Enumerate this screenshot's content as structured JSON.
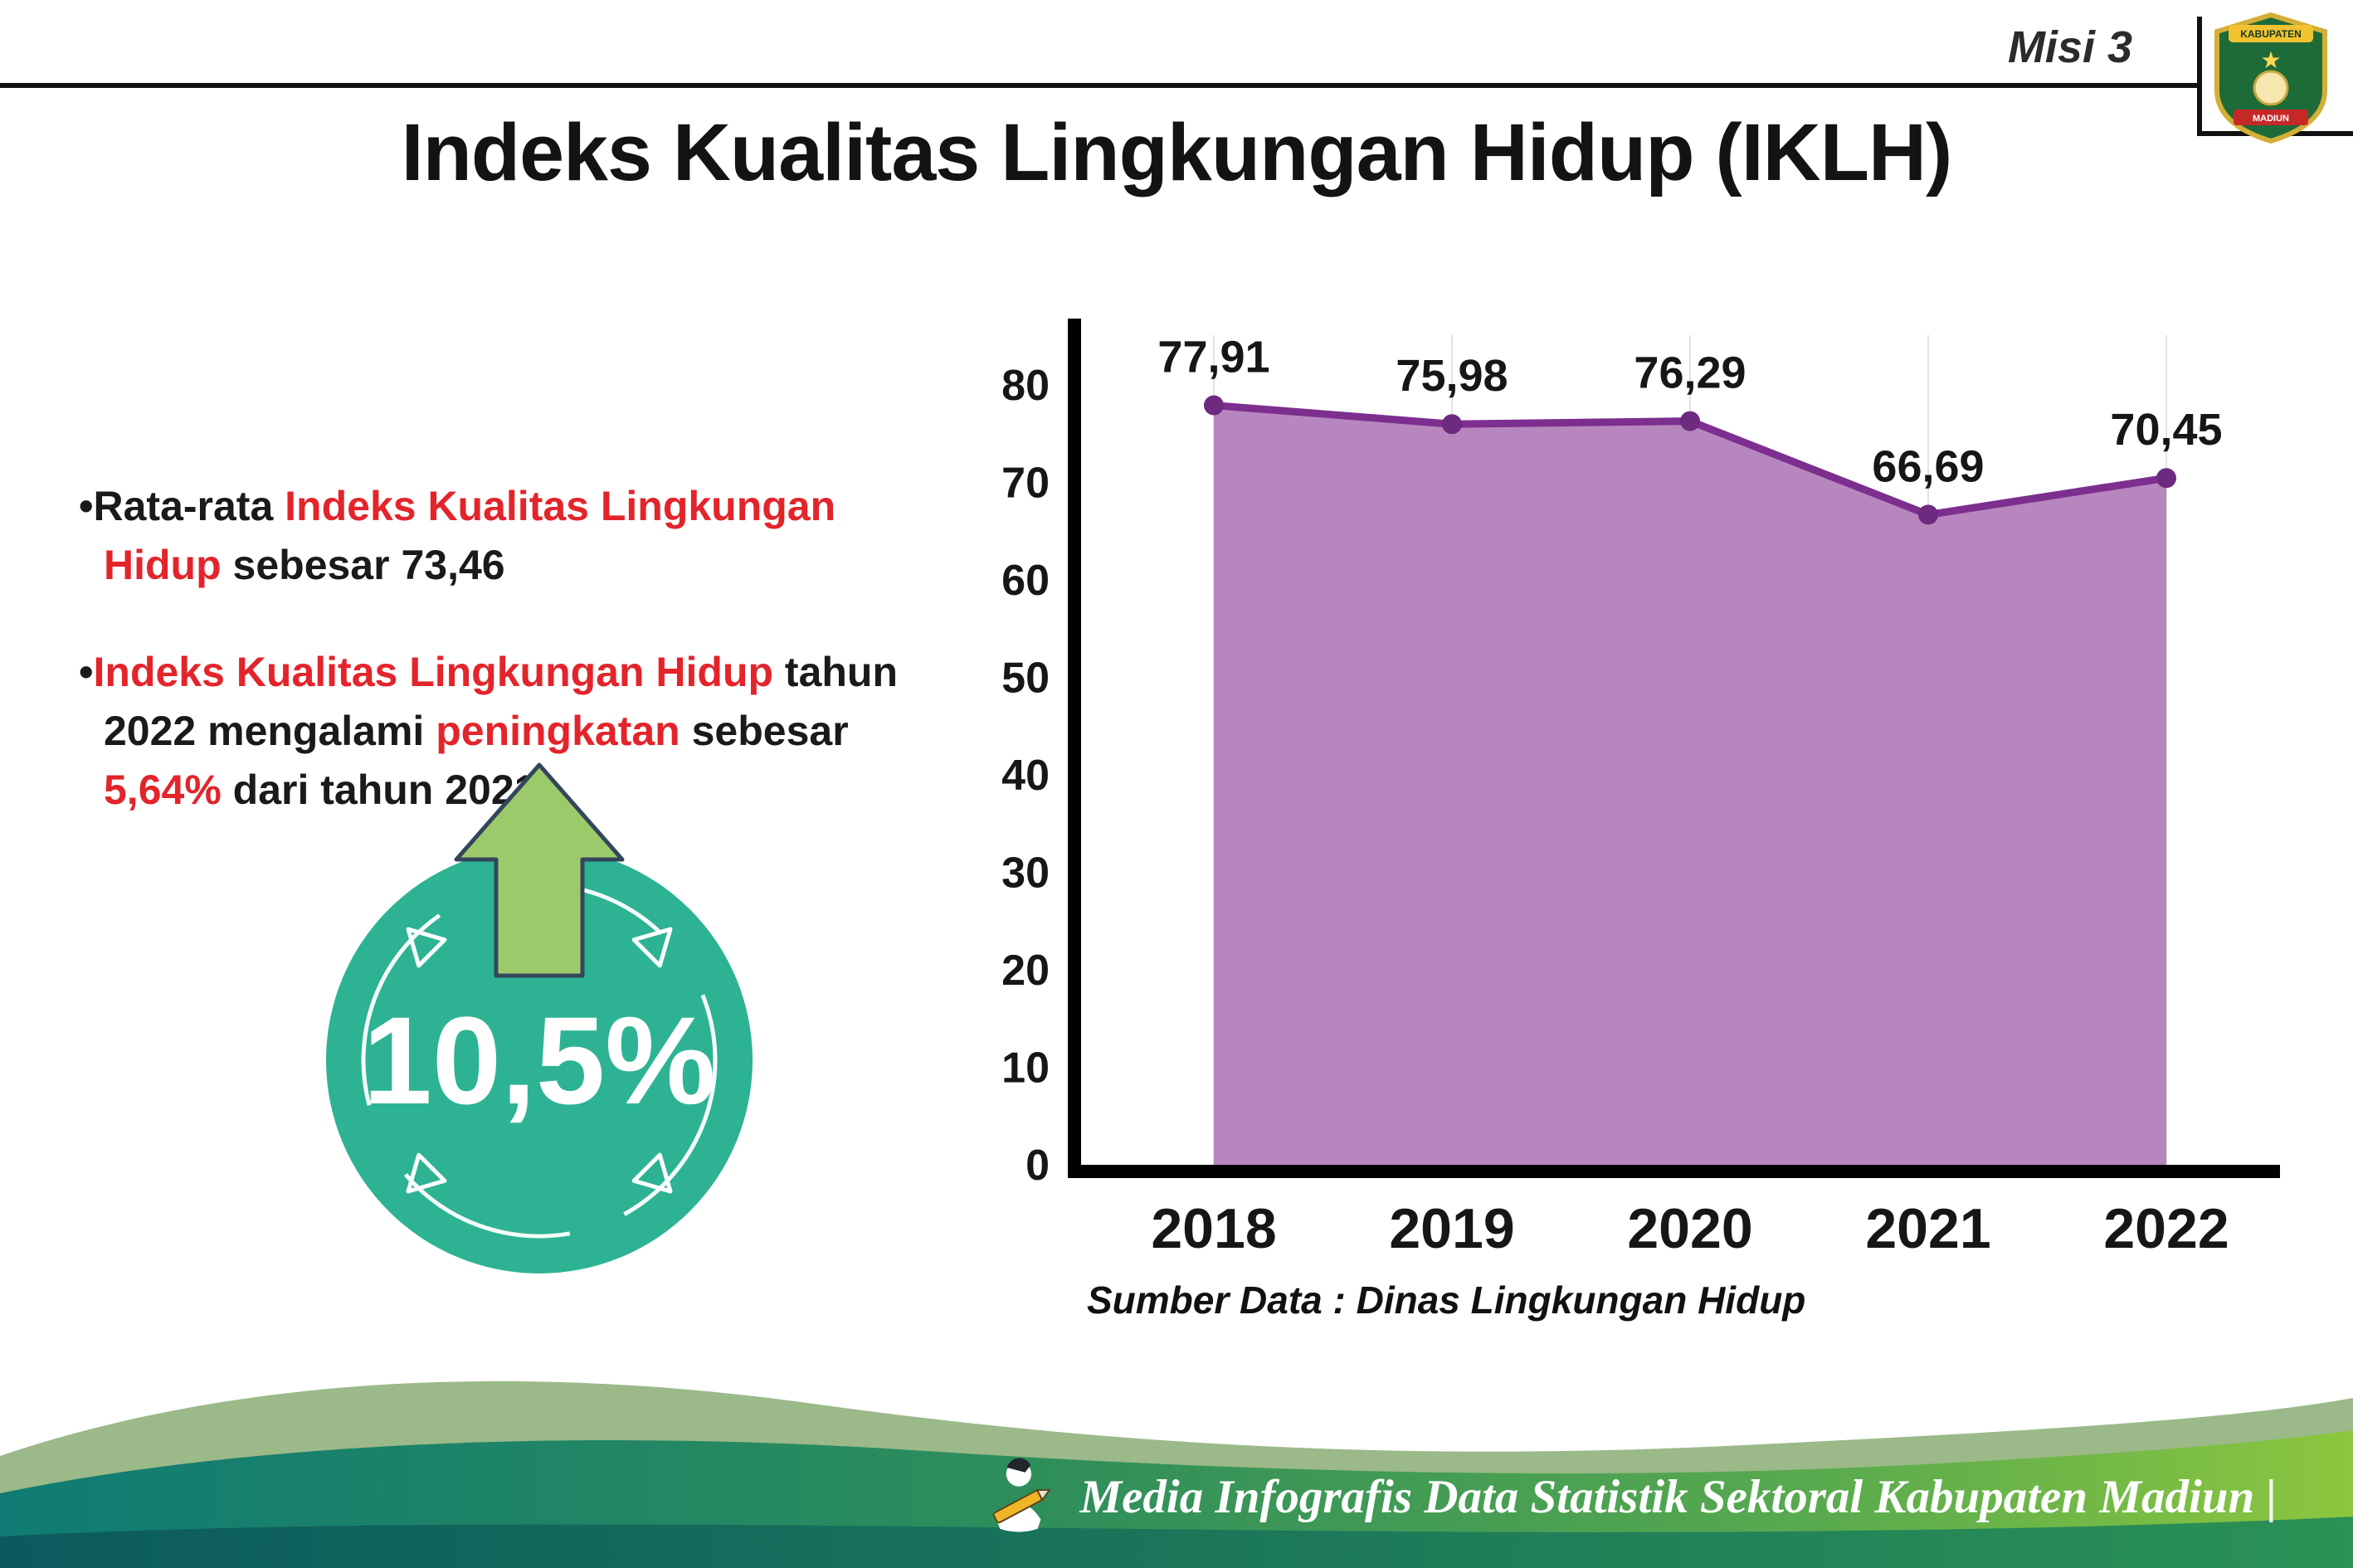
{
  "colors": {
    "accent_red": "#e3242b",
    "badge_teal": "#2db394",
    "arrow_green": "#9cca6b",
    "chart_fill": "#b886be",
    "chart_line": "#7c2f8e",
    "footer_text": "#ffffff"
  },
  "header": {
    "misi_label": "Misi 3",
    "title": "Indeks Kualitas Lingkungan Hidup (IKLH)",
    "logo_top_text": "KABUPATEN",
    "logo_bottom_text": "MADIUN"
  },
  "bullet_char": "•",
  "bullets": [
    {
      "segments": [
        {
          "text": "Rata-rata ",
          "color": "default"
        },
        {
          "text": "Indeks Kualitas Lingkungan Hidup",
          "color": "red"
        },
        {
          "text": " sebesar 73,46",
          "color": "default"
        }
      ]
    },
    {
      "segments": [
        {
          "text": "Indeks Kualitas Lingkungan Hidup",
          "color": "red"
        },
        {
          "text": " tahun 2022 mengalami ",
          "color": "default"
        },
        {
          "text": "peningkatan",
          "color": "red"
        },
        {
          "text": " sebesar ",
          "color": "default"
        },
        {
          "text": "5,64%",
          "color": "red"
        },
        {
          "text": " dari tahun 2021",
          "color": "default"
        }
      ]
    }
  ],
  "badge": {
    "value": "10,5%"
  },
  "chart_data": {
    "type": "area",
    "categories": [
      "2018",
      "2019",
      "2020",
      "2021",
      "2022"
    ],
    "values": [
      77.91,
      75.98,
      76.29,
      66.69,
      70.45
    ],
    "value_labels": [
      "77,91",
      "75,98",
      "76,29",
      "66,69",
      "70,45"
    ],
    "title": "",
    "xlabel": "",
    "ylabel": "",
    "ylim": [
      0,
      80
    ],
    "yticks": [
      0,
      10,
      20,
      30,
      40,
      50,
      60,
      70,
      80
    ],
    "grid": "vertical-light",
    "legend": "none",
    "fill_color": "#b886be",
    "line_color": "#7c2f8e",
    "point_color": "#6d2a7e",
    "axis_color": "#000000",
    "label_color": "#161616"
  },
  "source_note": "Sumber Data : Dinas Lingkungan Hidup",
  "footer": {
    "text": "Media Infografis Data Statistik Sektoral Kabupaten Madiun |"
  }
}
